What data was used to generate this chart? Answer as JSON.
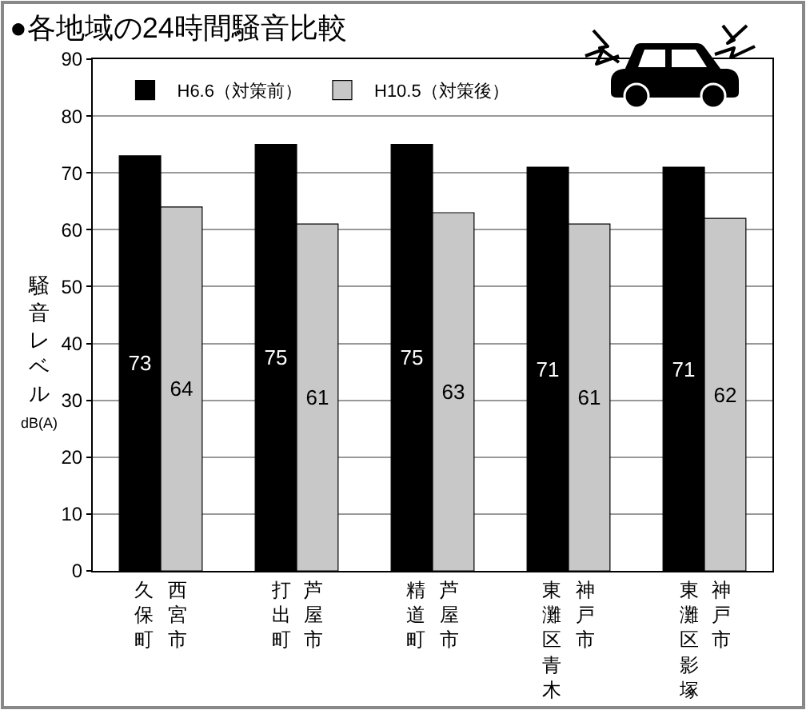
{
  "chart_data": {
    "type": "bar",
    "title": "●各地域の24時間騒音比較",
    "ylabel": "騒音レベルdB(A)",
    "categories": [
      "西宮市久保町",
      "芦屋市打出町",
      "芦屋市精道町",
      "神戸市東灘区青木",
      "神戸市東灘区影塚"
    ],
    "series": [
      {
        "name": "H6.6（対策前）",
        "color": "#000000",
        "values": [
          73,
          75,
          75,
          71,
          71
        ]
      },
      {
        "name": "H10.5（対策後）",
        "color": "#c8c8c8",
        "values": [
          64,
          61,
          63,
          61,
          62
        ]
      }
    ],
    "ylim": [
      0,
      90
    ],
    "yticks": [
      0,
      10,
      20,
      30,
      40,
      50,
      60,
      70,
      80,
      90
    ],
    "grid": "y",
    "legend": "top left",
    "data_labels": true
  }
}
